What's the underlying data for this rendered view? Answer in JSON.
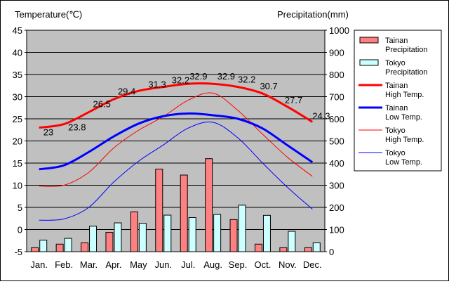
{
  "chart_data": {
    "type": "bar+line",
    "categories": [
      "Jan.",
      "Feb.",
      "Mar.",
      "Apr.",
      "May",
      "Jun.",
      "Jul.",
      "Aug.",
      "Sep.",
      "Oct.",
      "Nov.",
      "Dec."
    ],
    "left_axis": {
      "title": "Temperature(℃)",
      "range": [
        -5,
        45
      ],
      "ticks": [
        -5,
        0,
        5,
        10,
        15,
        20,
        25,
        30,
        35,
        40,
        45
      ]
    },
    "right_axis": {
      "title": "Precipitation(mm)",
      "range": [
        0,
        1000
      ],
      "ticks": [
        0,
        100,
        200,
        300,
        400,
        500,
        600,
        700,
        800,
        900,
        1000
      ]
    },
    "bars": [
      {
        "name": "Tainan\nPrecipitation",
        "color": "#ff8080",
        "values": [
          18,
          34,
          40,
          87,
          180,
          373,
          346,
          420,
          145,
          34,
          18,
          18
        ]
      },
      {
        "name": "Tokyo\nPrecipitation",
        "color": "#ccffff",
        "values": [
          52,
          60,
          115,
          130,
          128,
          165,
          154,
          168,
          210,
          164,
          92,
          40
        ]
      }
    ],
    "lines": [
      {
        "name": "Tainan\nHigh Temp.",
        "color": "#ff0000",
        "width": 3,
        "values": [
          23,
          23.8,
          26.5,
          29.4,
          31.3,
          32.2,
          32.9,
          32.9,
          32.2,
          30.7,
          27.7,
          24.3
        ]
      },
      {
        "name": "Tainan\nLow Temp.",
        "color": "#0000ff",
        "width": 3,
        "values": [
          13.6,
          14.5,
          17.5,
          21,
          23.9,
          25.6,
          26.2,
          25.8,
          25,
          22.8,
          19,
          15.2
        ]
      },
      {
        "name": "Tokyo\nHigh Temp.",
        "color": "#ff0000",
        "width": 1,
        "values": [
          9.8,
          10,
          12.9,
          18.4,
          22.4,
          25.5,
          29.2,
          30.8,
          26.9,
          21.5,
          16.3,
          12
        ]
      },
      {
        "name": "Tokyo\nLow Temp.",
        "color": "#0000ff",
        "width": 1,
        "values": [
          2.1,
          2.4,
          5,
          10.7,
          15.4,
          19.1,
          22.9,
          24.2,
          20.7,
          15,
          9.5,
          4.6
        ]
      }
    ],
    "data_labels": [
      "23",
      "23.8",
      "26.5",
      "29.4",
      "31.3",
      "32.2",
      "32.9",
      "32.9",
      "32.2",
      "30.7",
      "27.7",
      "24.3"
    ],
    "plot_background": "#c0c0c0",
    "grid": true,
    "legend_position": "right"
  }
}
